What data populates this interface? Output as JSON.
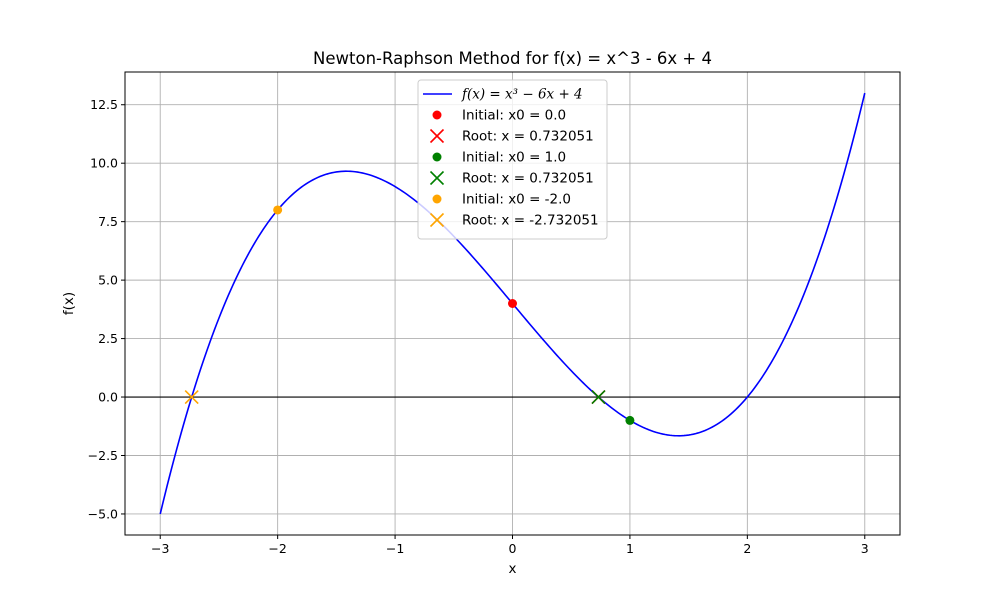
{
  "chart_data": {
    "type": "line",
    "title": "Newton-Raphson Method for f(x) = x^3 - 6x + 4",
    "xlabel": "x",
    "ylabel": "f(x)",
    "xlim": [
      -3.3,
      3.3
    ],
    "ylim": [
      -5.9,
      13.9
    ],
    "x_ticks": [
      -3,
      -2,
      -1,
      0,
      1,
      2,
      3
    ],
    "x_tick_labels": [
      "−3",
      "−2",
      "−1",
      "0",
      "1",
      "2",
      "3"
    ],
    "y_ticks": [
      -5.0,
      -2.5,
      0.0,
      2.5,
      5.0,
      7.5,
      10.0,
      12.5
    ],
    "y_tick_labels": [
      "−5.0",
      "−2.5",
      "0.0",
      "2.5",
      "5.0",
      "7.5",
      "10.0",
      "12.5"
    ],
    "grid": true,
    "legend_position": "top-center",
    "function": {
      "expression": "x^3 - 6x + 4",
      "domain": [
        -3,
        3
      ],
      "color": "#0000ff",
      "legend_label": "f(x) = x³ − 6x + 4"
    },
    "zero_line": {
      "y": 0,
      "color": "#000000"
    },
    "points": [
      {
        "kind": "initial",
        "x": 0.0,
        "y": 4.0,
        "color": "#ff0000",
        "label": "Initial: x0 = 0.0"
      },
      {
        "kind": "root",
        "x": 0.732051,
        "y": 0.0,
        "color": "#ff0000",
        "label": "Root: x = 0.732051"
      },
      {
        "kind": "initial",
        "x": 1.0,
        "y": -1.0,
        "color": "#008000",
        "label": "Initial: x0 = 1.0"
      },
      {
        "kind": "root",
        "x": 0.732051,
        "y": 0.0,
        "color": "#008000",
        "label": "Root: x = 0.732051"
      },
      {
        "kind": "initial",
        "x": -2.0,
        "y": 8.0,
        "color": "#ffa500",
        "label": "Initial: x0 = -2.0"
      },
      {
        "kind": "root",
        "x": -2.732051,
        "y": 0.0,
        "color": "#ffa500",
        "label": "Root: x = -2.732051"
      }
    ]
  }
}
